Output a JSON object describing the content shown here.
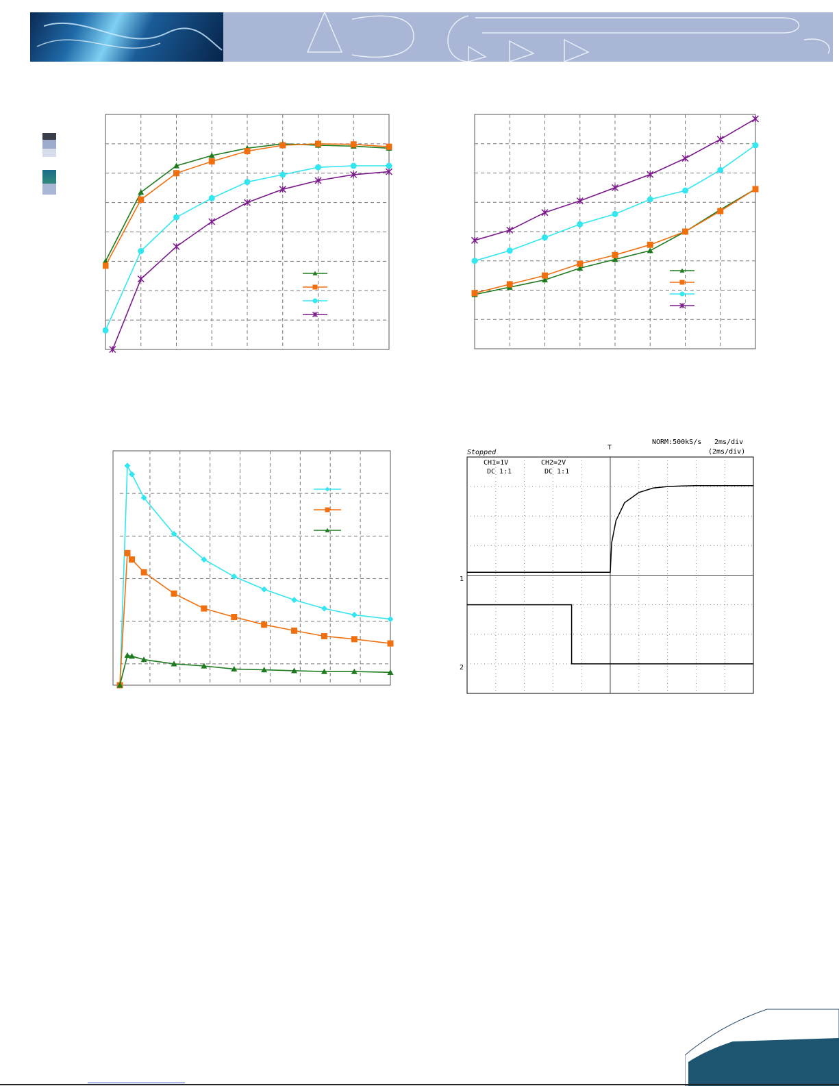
{
  "colors": {
    "green": "#1e7a1e",
    "orange": "#f07010",
    "cyan": "#33e6f0",
    "purple": "#7a1a8a",
    "header": "#a9b6d6",
    "footer_band": "#1d5570"
  },
  "chart_data": [
    {
      "type": "line",
      "title": "",
      "xlabel": "",
      "ylabel": "",
      "xlim": [
        0,
        8
      ],
      "ylim": [
        0,
        8
      ],
      "grid": true,
      "legend_position": "bottom-right",
      "series": [
        {
          "color": "#1e7a1e",
          "marker": "triangle",
          "x": [
            0,
            1,
            2,
            3,
            4,
            5,
            6,
            7,
            8
          ],
          "y": [
            3.0,
            5.35,
            6.25,
            6.6,
            6.85,
            7.0,
            6.95,
            6.92,
            6.85
          ]
        },
        {
          "color": "#f07010",
          "marker": "square",
          "x": [
            0,
            1,
            2,
            3,
            4,
            5,
            6,
            7,
            8
          ],
          "y": [
            2.85,
            5.1,
            6.0,
            6.4,
            6.75,
            6.95,
            7.0,
            6.98,
            6.9
          ]
        },
        {
          "color": "#33e6f0",
          "marker": "circle",
          "x": [
            0,
            1,
            2,
            3,
            4,
            5,
            6,
            7,
            8
          ],
          "y": [
            0.65,
            3.35,
            4.5,
            5.15,
            5.7,
            5.95,
            6.2,
            6.25,
            6.25
          ]
        },
        {
          "color": "#7a1a8a",
          "marker": "x",
          "x": [
            0.2,
            1,
            2,
            3,
            4,
            5,
            6,
            7,
            8
          ],
          "y": [
            0,
            2.4,
            3.5,
            4.35,
            5.0,
            5.45,
            5.75,
            5.95,
            6.05
          ]
        }
      ]
    },
    {
      "type": "line",
      "title": "",
      "xlabel": "",
      "ylabel": "",
      "xlim": [
        0,
        8
      ],
      "ylim": [
        0,
        8
      ],
      "grid": true,
      "legend_position": "bottom-right",
      "series": [
        {
          "color": "#1e7a1e",
          "marker": "triangle",
          "x": [
            0,
            1,
            2,
            3,
            4,
            5,
            6,
            7,
            8
          ],
          "y": [
            1.85,
            2.1,
            2.35,
            2.75,
            3.05,
            3.35,
            4.0,
            4.75,
            5.45
          ]
        },
        {
          "color": "#f07010",
          "marker": "square",
          "x": [
            0,
            1,
            2,
            3,
            4,
            5,
            6,
            7,
            8
          ],
          "y": [
            1.9,
            2.2,
            2.5,
            2.9,
            3.2,
            3.55,
            4.0,
            4.7,
            5.45
          ]
        },
        {
          "color": "#33e6f0",
          "marker": "circle",
          "x": [
            0,
            1,
            2,
            3,
            4,
            5,
            6,
            7,
            8
          ],
          "y": [
            3.0,
            3.35,
            3.8,
            4.25,
            4.6,
            5.1,
            5.4,
            6.1,
            6.95
          ]
        },
        {
          "color": "#7a1a8a",
          "marker": "x",
          "x": [
            0,
            1,
            2,
            3,
            4,
            5,
            6,
            7,
            8
          ],
          "y": [
            3.7,
            4.05,
            4.65,
            5.05,
            5.5,
            5.95,
            6.5,
            7.15,
            7.85
          ]
        }
      ]
    },
    {
      "type": "line",
      "title": "",
      "xlabel": "",
      "ylabel": "",
      "xlim": [
        0,
        9
      ],
      "ylim": [
        0,
        5.5
      ],
      "grid": true,
      "legend_position": "top-right",
      "series": [
        {
          "color": "#33e6f0",
          "marker": "diamond",
          "x": [
            0,
            0.25,
            0.4,
            0.8,
            1.8,
            2.8,
            3.8,
            4.8,
            5.8,
            6.8,
            7.8,
            9.0
          ],
          "y": [
            0,
            5.15,
            4.95,
            4.4,
            3.55,
            2.95,
            2.55,
            2.25,
            2.0,
            1.8,
            1.65,
            1.55
          ]
        },
        {
          "color": "#f07010",
          "marker": "square",
          "x": [
            0,
            0.25,
            0.4,
            0.8,
            1.8,
            2.8,
            3.8,
            4.8,
            5.8,
            6.8,
            7.8,
            9.0
          ],
          "y": [
            0,
            3.1,
            2.95,
            2.65,
            2.15,
            1.8,
            1.6,
            1.42,
            1.28,
            1.15,
            1.08,
            0.98
          ]
        },
        {
          "color": "#1e7a1e",
          "marker": "triangle",
          "x": [
            0,
            0.25,
            0.4,
            0.8,
            1.8,
            2.8,
            3.8,
            4.8,
            5.8,
            6.8,
            7.8,
            9.0
          ],
          "y": [
            0,
            0.7,
            0.68,
            0.6,
            0.5,
            0.45,
            0.38,
            0.36,
            0.34,
            0.32,
            0.32,
            0.3
          ]
        }
      ]
    },
    {
      "type": "line",
      "subtype": "oscilloscope",
      "status": "Stopped",
      "trigger_mode": "NORM:500kS/s",
      "timebase": "2ms/div",
      "timebase_sub": "(2ms/div)",
      "ch1_setting": "CH1=1V",
      "ch1_coupling": "DC  1:1",
      "ch2_setting": "CH2=2V",
      "ch2_coupling": "DC  1:1",
      "ch1_marker": "1",
      "ch2_marker": "2",
      "trigger_marker": "T",
      "xlim": [
        0,
        10
      ],
      "ylim": [
        0,
        8
      ],
      "grid": true,
      "series": [
        {
          "name": "CH1",
          "note": "rises at t=5.0 with exponential settling",
          "x": [
            0,
            5.0,
            5.05,
            5.2,
            5.5,
            6.0,
            6.5,
            7.0,
            7.5,
            8.0,
            10.0
          ],
          "y": [
            4.1,
            4.1,
            5.1,
            5.85,
            6.45,
            6.8,
            6.95,
            7.0,
            7.02,
            7.03,
            7.03
          ]
        },
        {
          "name": "CH2",
          "note": "falls at t=3.7",
          "x": [
            0,
            3.65,
            3.65,
            10.0
          ],
          "y": [
            3.0,
            3.0,
            1.0,
            1.0
          ]
        }
      ]
    }
  ]
}
